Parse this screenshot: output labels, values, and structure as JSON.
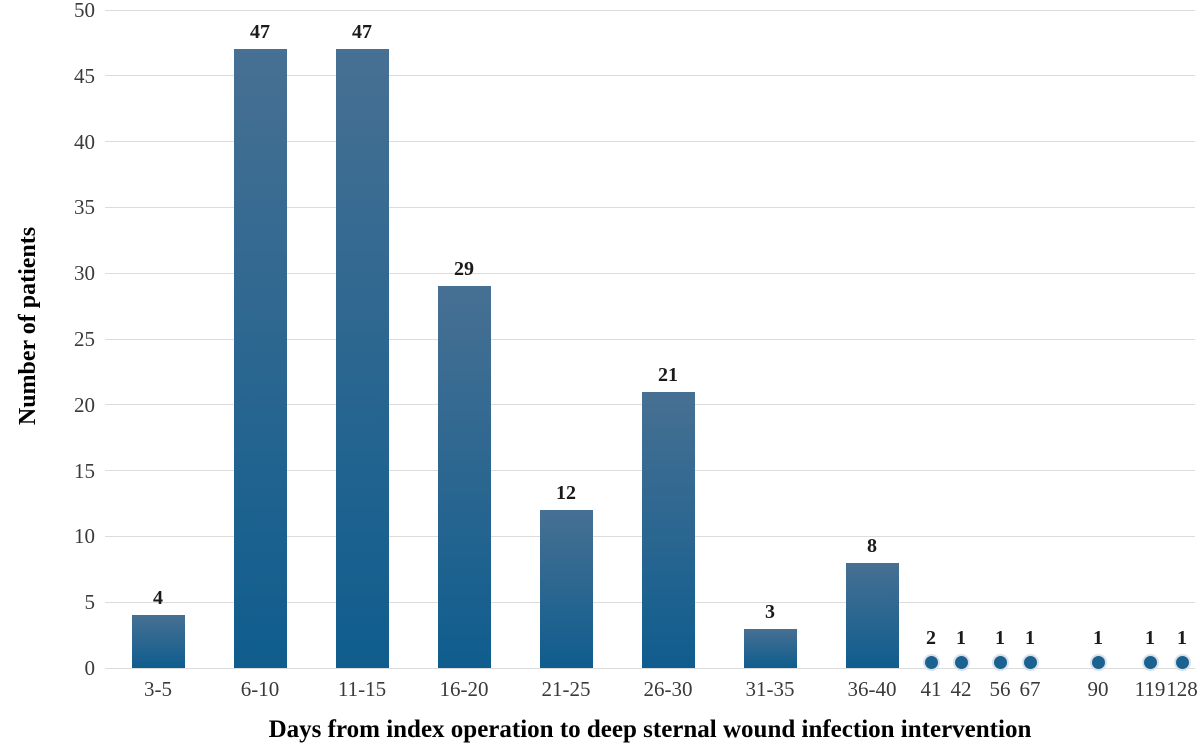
{
  "chart_data": {
    "type": "bar",
    "title": "",
    "xlabel": "Days from index operation to deep sternal wound infection intervention",
    "ylabel": "Number of patients",
    "ylim": [
      0,
      50
    ],
    "ytick_step": 5,
    "grid": true,
    "legend": "none",
    "categories": [
      "3-5",
      "6-10",
      "11-15",
      "16-20",
      "21-25",
      "26-30",
      "31-35",
      "36-40",
      "41",
      "42",
      "56",
      "67",
      "90",
      "119",
      "128"
    ],
    "values": [
      4,
      47,
      47,
      29,
      12,
      21,
      3,
      8,
      2,
      1,
      1,
      1,
      1,
      1,
      1
    ],
    "bar_groups": [
      {
        "label": "3-5",
        "value": 4
      },
      {
        "label": "6-10",
        "value": 47
      },
      {
        "label": "11-15",
        "value": 47
      },
      {
        "label": "16-20",
        "value": 29
      },
      {
        "label": "21-25",
        "value": 12
      },
      {
        "label": "26-30",
        "value": 21
      },
      {
        "label": "31-35",
        "value": 3
      },
      {
        "label": "36-40",
        "value": 8
      }
    ],
    "dot_points": [
      {
        "label": "41",
        "value": 2
      },
      {
        "label": "42",
        "value": 1
      },
      {
        "label": "56",
        "value": 1
      },
      {
        "label": "67",
        "value": 1
      },
      {
        "label": "90",
        "value": 1
      },
      {
        "label": "119",
        "value": 1
      },
      {
        "label": "128",
        "value": 1
      }
    ],
    "colors": {
      "bar_top": "#477093",
      "bar_bottom": "#0f5d8e",
      "dot": "#1c6290",
      "dot_halo": "#d9e2ec",
      "gridline": "#dcdcdc",
      "tick_text": "#3a3a3a",
      "label_text": "#1a1a1a"
    }
  }
}
